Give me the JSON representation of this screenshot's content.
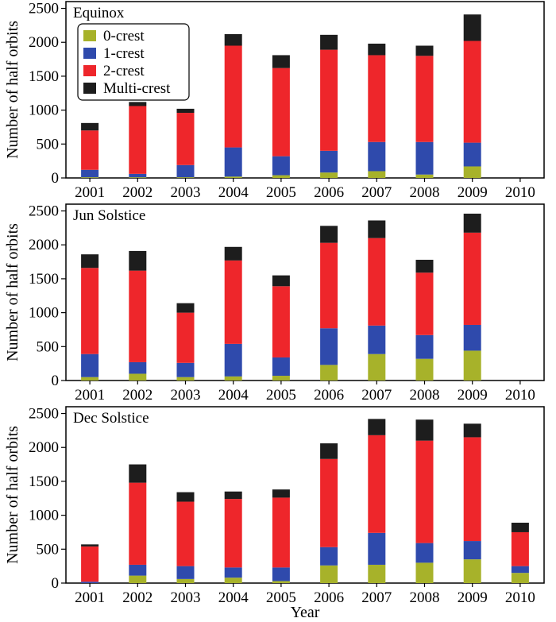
{
  "colors": {
    "0-crest": "#a7b22a",
    "1-crest": "#2f4aac",
    "2-crest": "#ee262b",
    "Multi-crest": "#1d1d1d",
    "axis": "#000000"
  },
  "chart_data": [
    {
      "type": "bar",
      "stacked": true,
      "title": "Equinox",
      "categories": [
        "2001",
        "2002",
        "2003",
        "2004",
        "2005",
        "2006",
        "2007",
        "2008",
        "2009",
        "2010"
      ],
      "xlabel": "",
      "ylabel": "Number of half orbits",
      "ylim": [
        0,
        2600
      ],
      "yticks": [
        "0",
        "500",
        "1000",
        "1500",
        "2000",
        "2500"
      ],
      "legend": {
        "placement": "top-left",
        "entries": [
          "0-crest",
          "1-crest",
          "2-crest",
          "Multi-crest"
        ]
      },
      "series": [
        {
          "name": "0-crest",
          "values": [
            10,
            10,
            10,
            20,
            40,
            80,
            100,
            50,
            170,
            0
          ]
        },
        {
          "name": "1-crest",
          "values": [
            110,
            50,
            180,
            430,
            280,
            320,
            430,
            480,
            350,
            0
          ]
        },
        {
          "name": "2-crest",
          "values": [
            580,
            1000,
            770,
            1500,
            1300,
            1490,
            1280,
            1270,
            1500,
            0
          ]
        },
        {
          "name": "Multi-crest",
          "values": [
            110,
            60,
            60,
            170,
            190,
            220,
            170,
            150,
            390,
            0
          ]
        }
      ]
    },
    {
      "type": "bar",
      "stacked": true,
      "title": "Jun Solstice",
      "categories": [
        "2001",
        "2002",
        "2003",
        "2004",
        "2005",
        "2006",
        "2007",
        "2008",
        "2009",
        "2010"
      ],
      "xlabel": "",
      "ylabel": "Number of half orbits",
      "ylim": [
        0,
        2600
      ],
      "yticks": [
        "0",
        "500",
        "1000",
        "1500",
        "2000",
        "2500"
      ],
      "series": [
        {
          "name": "0-crest",
          "values": [
            50,
            100,
            50,
            60,
            70,
            230,
            390,
            320,
            440,
            0
          ]
        },
        {
          "name": "1-crest",
          "values": [
            340,
            170,
            210,
            480,
            270,
            540,
            420,
            350,
            380,
            0
          ]
        },
        {
          "name": "2-crest",
          "values": [
            1270,
            1350,
            740,
            1230,
            1050,
            1260,
            1290,
            920,
            1360,
            0
          ]
        },
        {
          "name": "Multi-crest",
          "values": [
            200,
            290,
            140,
            200,
            160,
            250,
            260,
            190,
            280,
            0
          ]
        }
      ]
    },
    {
      "type": "bar",
      "stacked": true,
      "title": "Dec Solstice",
      "categories": [
        "2001",
        "2002",
        "2003",
        "2004",
        "2005",
        "2006",
        "2007",
        "2008",
        "2009",
        "2010"
      ],
      "xlabel": "Year",
      "ylabel": "Number of half orbits",
      "ylim": [
        0,
        2600
      ],
      "yticks": [
        "0",
        "500",
        "1000",
        "1500",
        "2000",
        "2500"
      ],
      "series": [
        {
          "name": "0-crest",
          "values": [
            0,
            110,
            60,
            80,
            30,
            260,
            270,
            300,
            350,
            150
          ]
        },
        {
          "name": "1-crest",
          "values": [
            20,
            160,
            190,
            150,
            200,
            270,
            470,
            290,
            270,
            100
          ]
        },
        {
          "name": "2-crest",
          "values": [
            520,
            1210,
            950,
            1010,
            1030,
            1300,
            1440,
            1510,
            1530,
            500
          ]
        },
        {
          "name": "Multi-crest",
          "values": [
            30,
            270,
            140,
            110,
            120,
            230,
            240,
            310,
            200,
            140
          ]
        }
      ]
    }
  ]
}
